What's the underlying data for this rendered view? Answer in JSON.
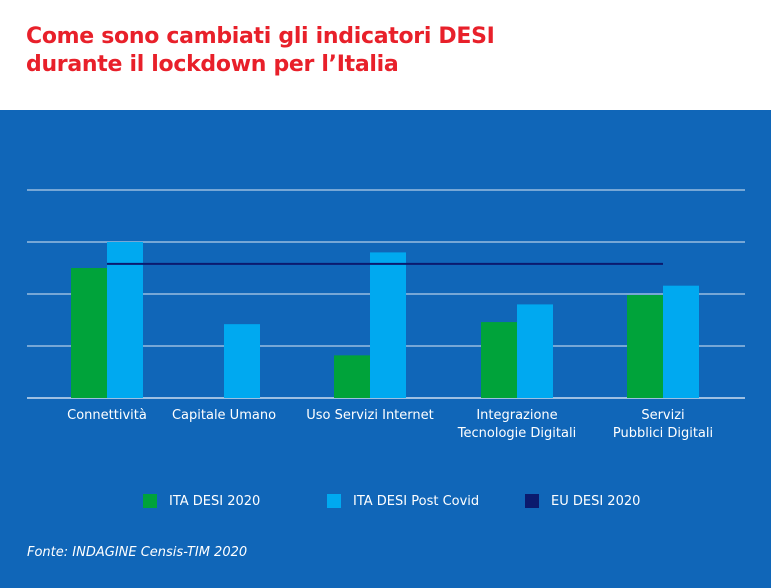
{
  "header": {
    "title_line1": "Come sono cambiati gli indicatori DESI",
    "title_line2": "durante il lockdown per l’Italia"
  },
  "colors": {
    "background": "#1066b8",
    "title": "#e8202a",
    "ita_2020": "#00a33a",
    "ita_post_covid": "#00a9f0",
    "eu_2020": "#0b1a6e",
    "grid": "#ffffff"
  },
  "chart_data": {
    "type": "bar",
    "title": "Come sono cambiati gli indicatori DESI durante il lockdown per l’Italia",
    "xlabel": "",
    "ylabel": "",
    "ylim": [
      0,
      4
    ],
    "grid": true,
    "y_tick_labels_shown": false,
    "legend_position": "bottom",
    "categories": [
      [
        "Connettività"
      ],
      [
        "Capitale Umano"
      ],
      [
        "Uso Servizi Internet"
      ],
      [
        "Integrazione",
        "Tecnologie Digitali"
      ],
      [
        "Servizi",
        "Pubblici Digitali"
      ]
    ],
    "series": [
      {
        "name": "ITA DESI 2020",
        "type": "bar",
        "values": [
          2.5,
          null,
          0.82,
          1.46,
          1.98
        ]
      },
      {
        "name": "ITA DESI Post Covid",
        "type": "bar",
        "values": [
          3.0,
          1.42,
          2.8,
          1.8,
          2.16
        ]
      },
      {
        "name": "EU DESI 2020",
        "type": "line",
        "values": [
          2.58,
          2.58,
          2.58,
          2.58,
          2.58
        ]
      }
    ]
  },
  "legend": [
    {
      "label": "ITA DESI 2020"
    },
    {
      "label": "ITA DESI Post Covid"
    },
    {
      "label": "EU DESI 2020"
    }
  ],
  "source": "Fonte: INDAGINE Censis-TIM 2020"
}
